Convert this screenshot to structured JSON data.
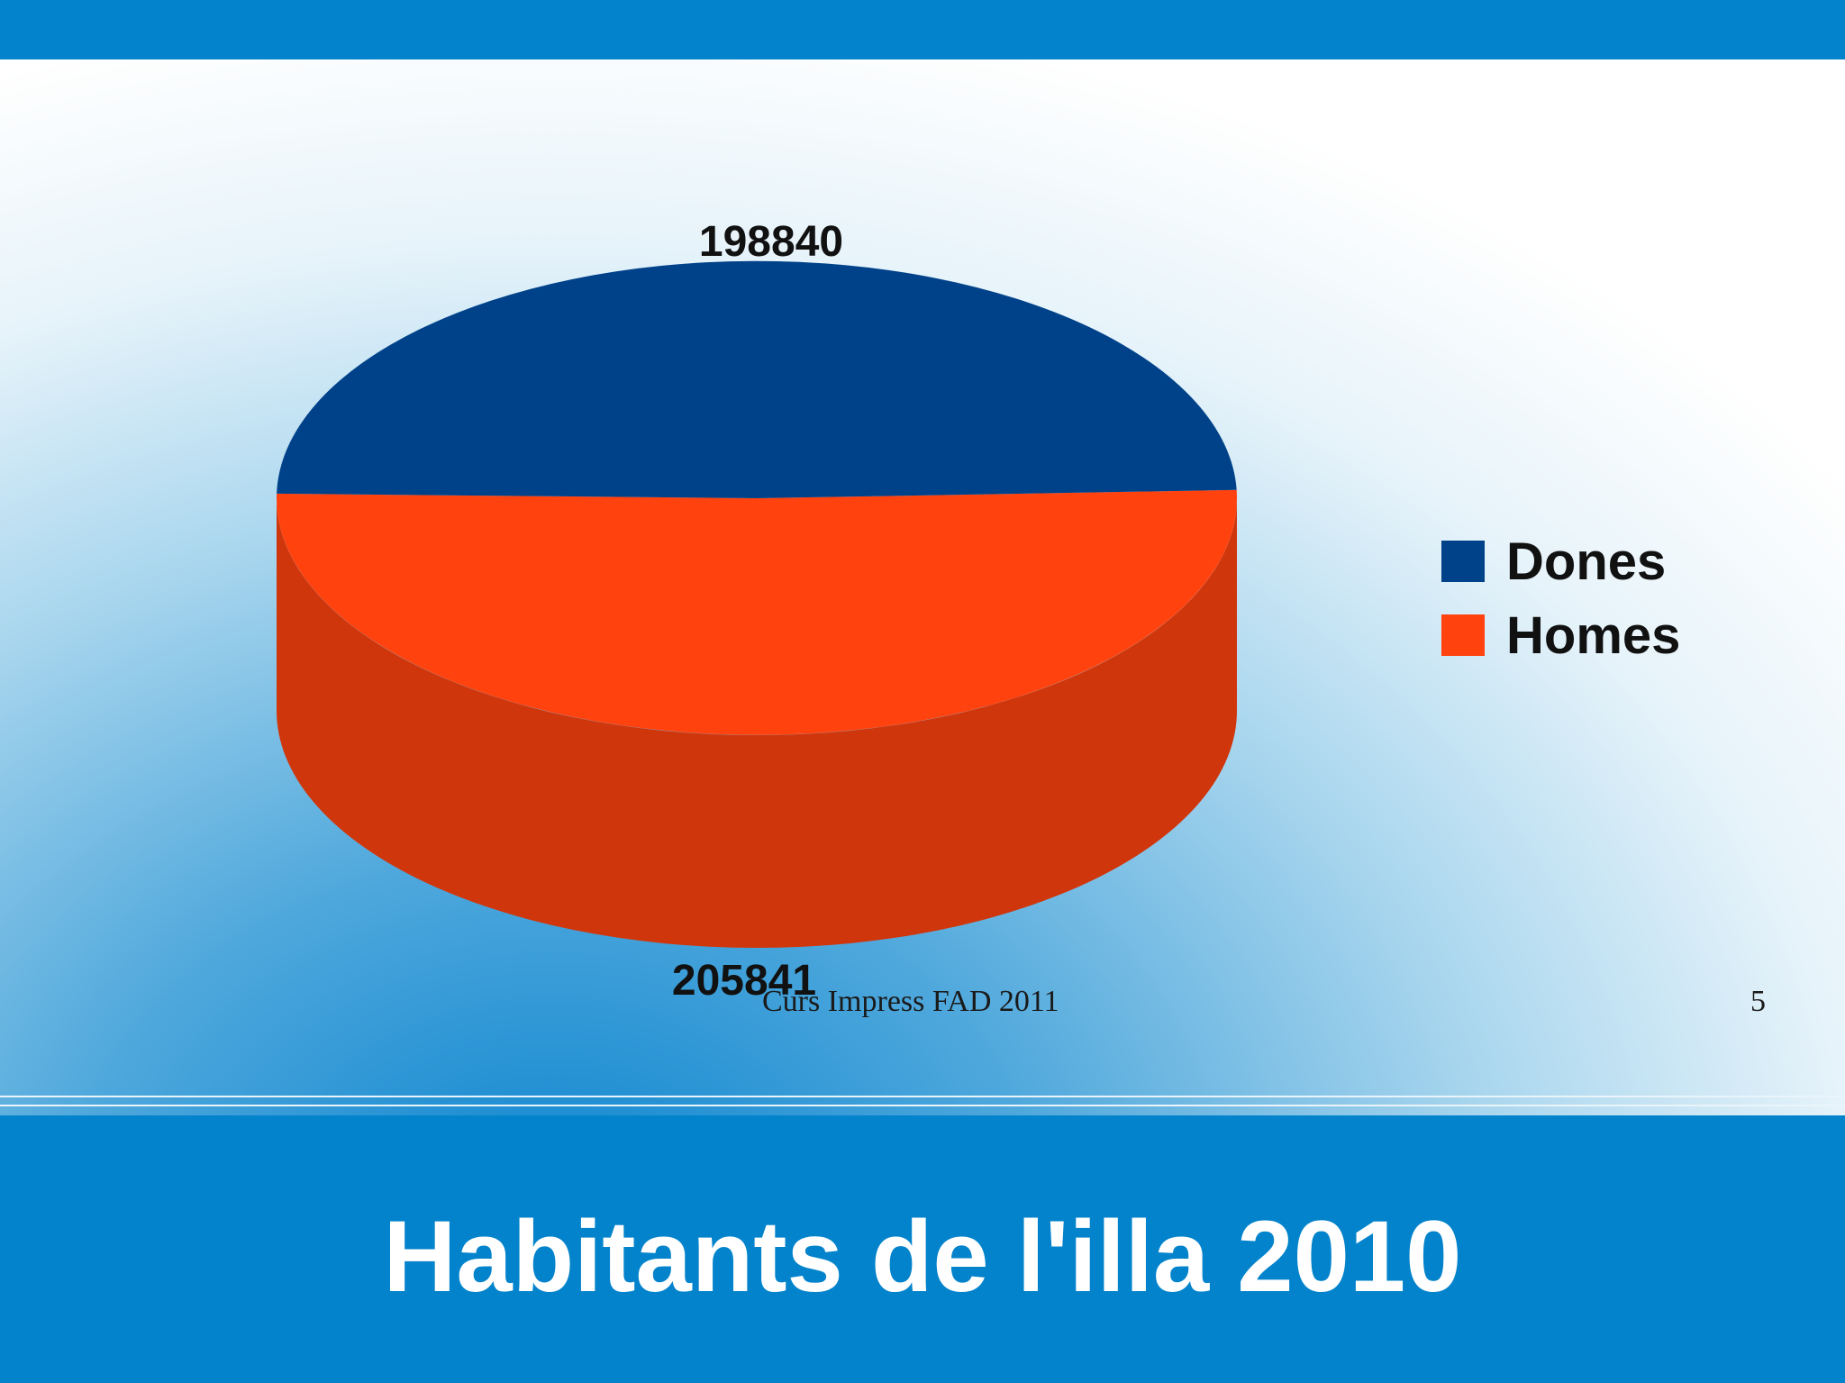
{
  "slide": {
    "title": "Habitants de l'illa 2010",
    "footer": "Curs Impress FAD 2011",
    "page_number": "5"
  },
  "colors": {
    "brand_blue": "#0283cb",
    "dones": "#00428a",
    "homes_top": "#ff420e",
    "homes_side": "#d0360c"
  },
  "chart_data": {
    "type": "pie",
    "style": "3d",
    "title": "",
    "categories": [
      "Dones",
      "Homes"
    ],
    "values": [
      198840,
      205841
    ],
    "data_labels": [
      "198840",
      "205841"
    ],
    "legend": {
      "position": "right",
      "entries": [
        "Dones",
        "Homes"
      ]
    }
  }
}
